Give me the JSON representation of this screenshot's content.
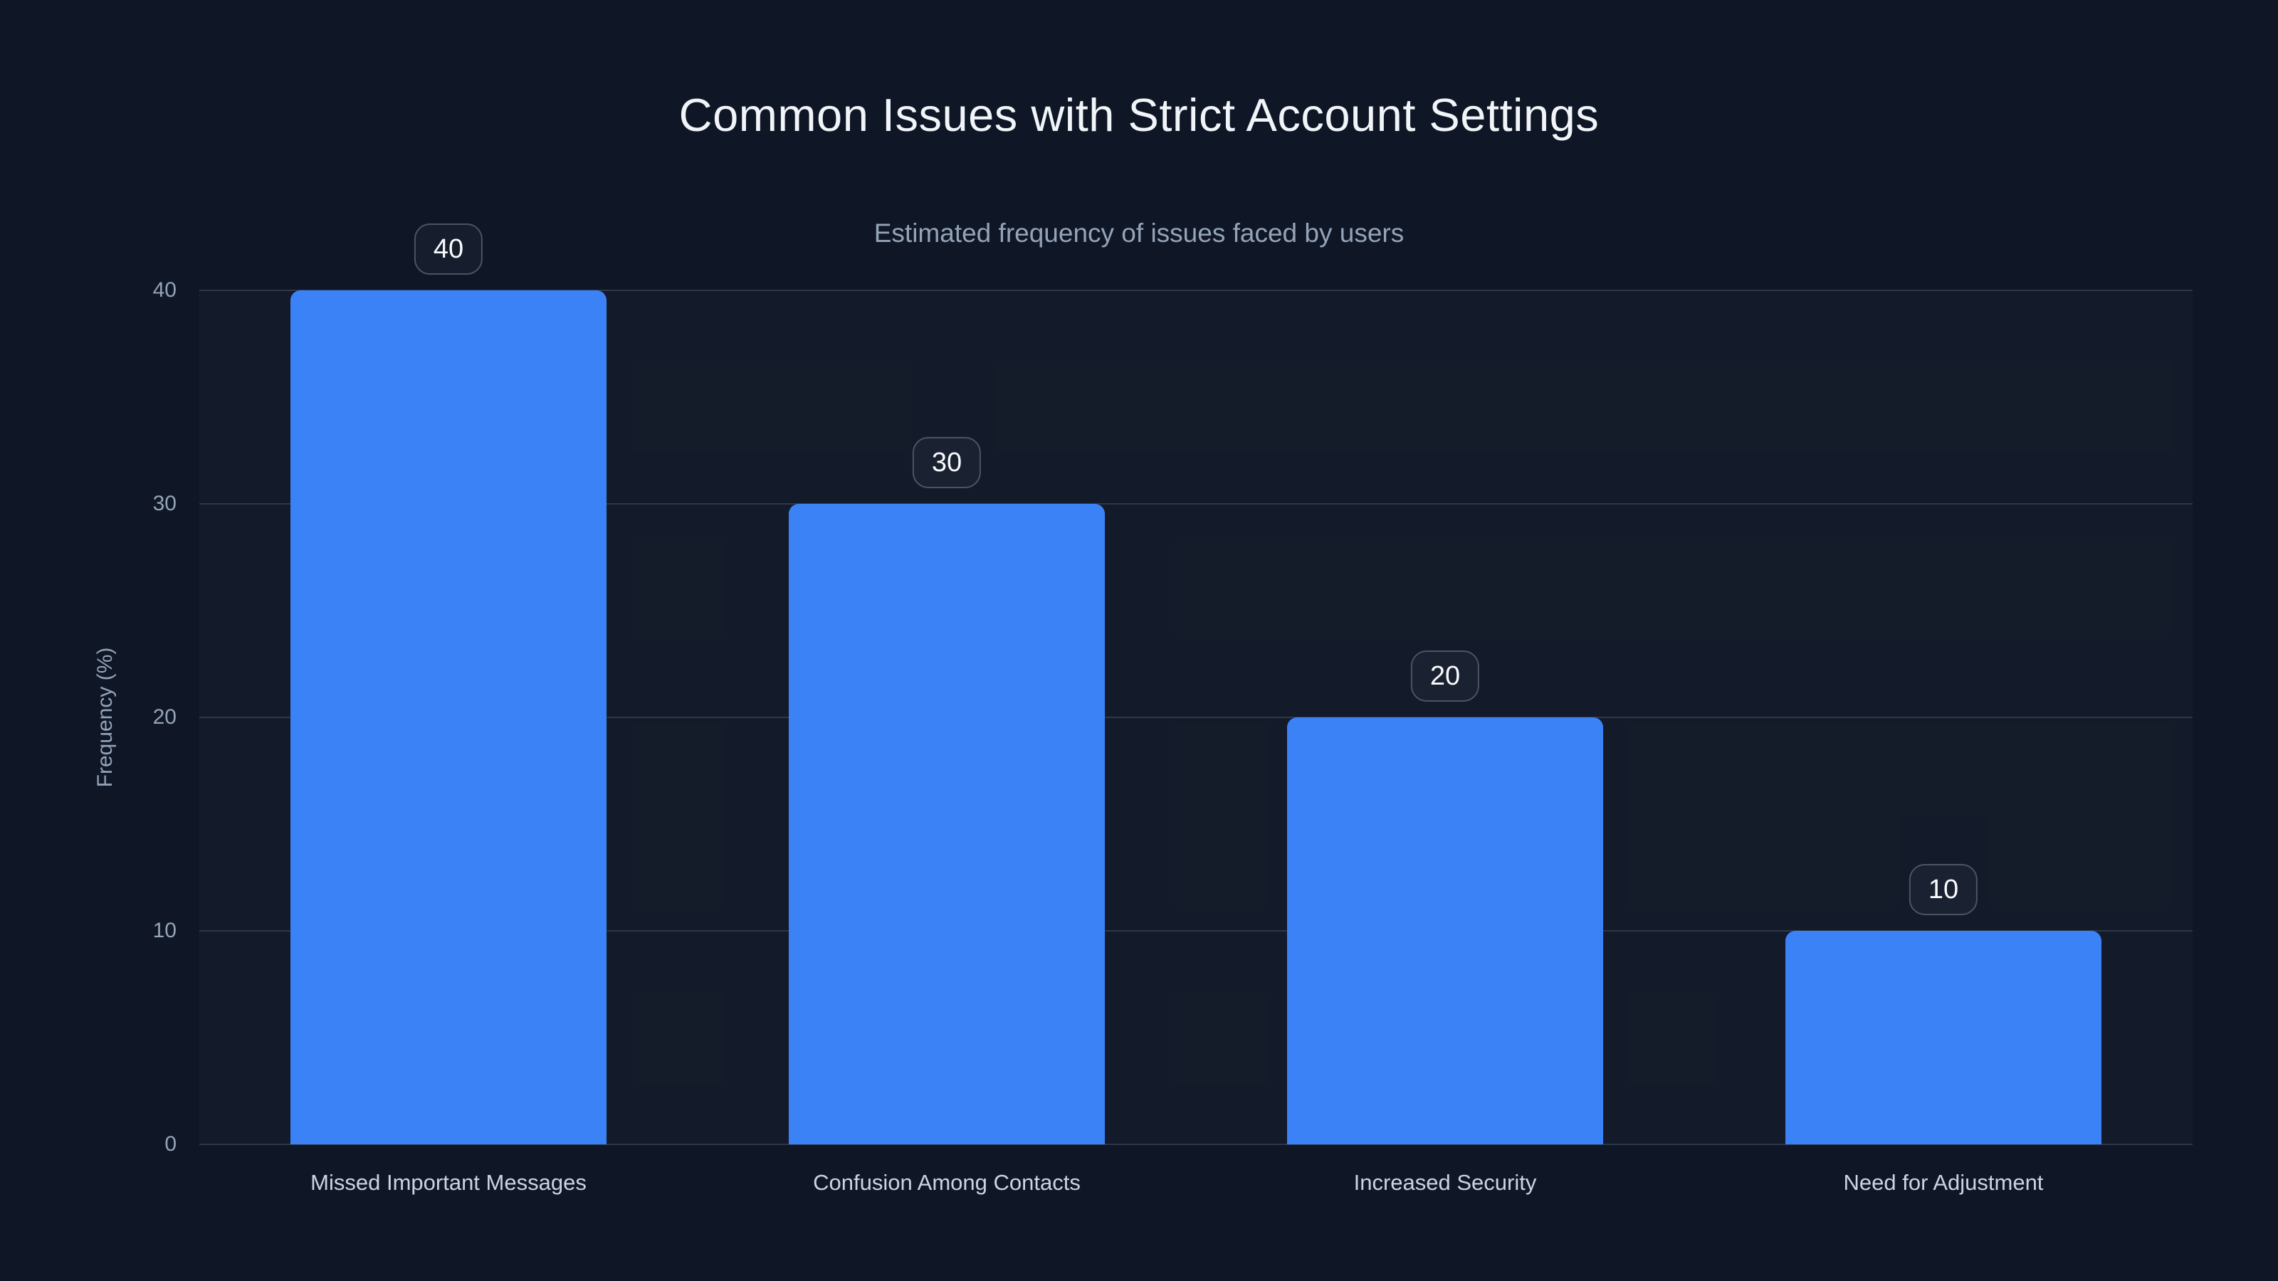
{
  "chart_data": {
    "type": "bar",
    "title": "Common Issues with Strict Account Settings",
    "subtitle": "Estimated frequency of issues faced by users",
    "ylabel": "Frequency (%)",
    "xlabel": "",
    "categories": [
      "Missed Important Messages",
      "Confusion Among Contacts",
      "Increased Security",
      "Need for Adjustment"
    ],
    "values": [
      40,
      30,
      20,
      10
    ],
    "value_labels": [
      "40",
      "30",
      "20",
      "10"
    ],
    "yticks": [
      0,
      10,
      20,
      30,
      40
    ],
    "ylim": [
      0,
      40
    ],
    "grid": true,
    "legend": false,
    "value_label_style": "rounded-badge"
  },
  "colors": {
    "background": "#0f1726",
    "bar": "#3b82f6",
    "grid": "#2e3649",
    "title_text": "#f1f5f9",
    "subtitle_text": "#94a3b8",
    "tick_text": "#94a3b8",
    "category_text": "#cbd5e1",
    "badge_border": "#4a5468",
    "badge_text": "#f8fafc"
  }
}
